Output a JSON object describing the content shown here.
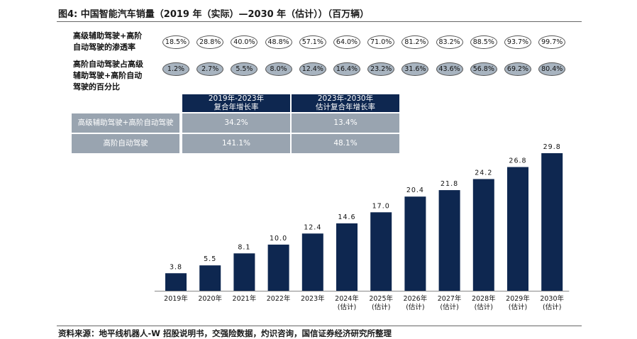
{
  "header": {
    "title": "图4: 中国智能汽车销量（2019 年（实际）—2030 年（估计））（百万辆）"
  },
  "footer": {
    "source": "资料来源：地平线机器人-W 招股说明书，交强险数据，灼识咨询，国信证券经济研究所整理"
  },
  "rows": {
    "penetration_label": "高级辅助驾驶+高阶\n自动驾驶的渗透率",
    "share_label": "高阶自动驾驶占高级\n辅助驾驶+高阶自动\n驾驶的百分比",
    "penetration": [
      "18.5%",
      "28.8%",
      "40.0%",
      "48.8%",
      "57.1%",
      "64.0%",
      "71.0%",
      "81.2%",
      "83.2%",
      "88.5%",
      "93.7%",
      "99.7%"
    ],
    "share": [
      "1.2%",
      "2.7%",
      "5.5%",
      "8.0%",
      "12.4%",
      "16.4%",
      "23.2%",
      "31.6%",
      "43.6%",
      "56.8%",
      "69.2%",
      "80.4%"
    ]
  },
  "cagr_table": {
    "headers": [
      "2019年-2023年\n复合年增长率",
      "2023年-2030年\n估计复合年增长率"
    ],
    "rows": [
      {
        "label": "高级辅助驾驶+高阶自动驾驶",
        "v1": "34.2%",
        "v2": "13.4%"
      },
      {
        "label": "高阶自动驾驶",
        "v1": "141.1%",
        "v2": "48.1%"
      }
    ]
  },
  "colors": {
    "bar": "#0e2750",
    "table_header": "#0e2750",
    "table_cell": "#99a4b0",
    "pill_dark": "#a8b4c0"
  },
  "chart_data": {
    "type": "bar",
    "categories": [
      "2019年",
      "2020年",
      "2021年",
      "2022年",
      "2023年",
      "2024年\n(估计)",
      "2025年\n(估计)",
      "2026年\n(估计)",
      "2027年\n(估计)",
      "2028年\n(估计)",
      "2029年\n(估计)",
      "2030年\n(估计)"
    ],
    "values": [
      3.8,
      5.5,
      8.1,
      10.0,
      12.4,
      14.6,
      17.0,
      20.4,
      21.8,
      24.2,
      26.8,
      29.8
    ],
    "labels": [
      "3.8",
      "5.5",
      "8.1",
      "10.0",
      "12.4",
      "14.6",
      "17.0",
      "20.4",
      "21.8",
      "24.2",
      "26.8",
      "29.8"
    ],
    "title": "",
    "xlabel": "",
    "ylabel": "",
    "ylim": [
      0,
      29.8
    ],
    "grid": false,
    "legend": "none"
  }
}
